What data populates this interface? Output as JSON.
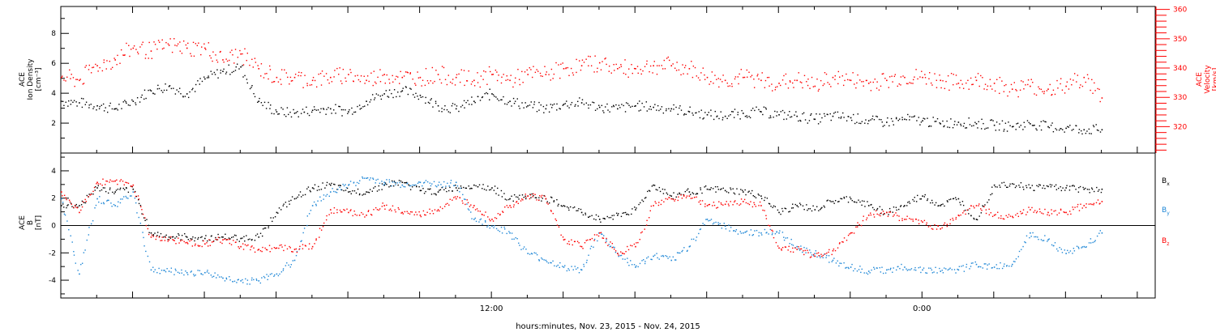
{
  "xlabel": "hours:minutes, Nov. 23, 2015 - Nov. 24, 2015",
  "x_tick_labels": [
    {
      "hour": 12,
      "label": "12:00"
    },
    {
      "hour": 24,
      "label": "0:00"
    }
  ],
  "colors": {
    "black": "#000000",
    "red": "#ff0000",
    "blue": "#1f87d6"
  },
  "chart_data": [
    {
      "type": "scatter",
      "name": "top-panel",
      "ylabel_left": [
        "ACE",
        "Ion Density",
        "[cm⁻³]"
      ],
      "ylabel_right": [
        "ACE",
        "Velocity",
        "[km/s]"
      ],
      "x_unit": "hours since 00:00 Nov. 23, 2015",
      "xlim": [
        0,
        30.5
      ],
      "ylim_left": [
        0,
        9.8
      ],
      "ylim_right": [
        311,
        361
      ],
      "left_ticks": [
        2,
        4,
        6,
        8
      ],
      "right_ticks": [
        320,
        330,
        340,
        350,
        360
      ],
      "series": [
        {
          "name": "Ion Density",
          "color": "black",
          "axis": "left",
          "x": [
            0,
            0.5,
            1,
            1.5,
            2,
            2.5,
            3,
            3.5,
            4,
            4.5,
            5,
            5.5,
            6,
            6.5,
            7,
            7.5,
            8,
            8.5,
            9,
            9.5,
            10,
            10.5,
            11,
            11.5,
            12,
            12.5,
            13,
            13.5,
            14,
            14.5,
            15,
            15.5,
            16,
            16.5,
            17,
            17.5,
            18,
            18.5,
            19,
            19.5,
            20,
            20.5,
            21,
            21.5,
            22,
            22.5,
            23,
            23.5,
            24,
            24.5,
            25,
            25.5,
            26,
            26.5,
            27,
            27.5,
            28,
            28.5,
            29
          ],
          "y": [
            3.5,
            3.4,
            3.2,
            3.0,
            3.5,
            4.2,
            4.5,
            4.0,
            5.0,
            5.5,
            5.8,
            3.5,
            2.8,
            2.7,
            2.9,
            3.0,
            2.8,
            3.5,
            4.0,
            4.2,
            3.9,
            3.2,
            3.0,
            3.5,
            4.0,
            3.5,
            3.2,
            3.0,
            3.3,
            3.4,
            3.1,
            3.0,
            3.2,
            3.1,
            3.0,
            2.8,
            2.6,
            2.5,
            2.7,
            2.8,
            2.6,
            2.5,
            2.3,
            2.5,
            2.4,
            2.2,
            2.1,
            2.3,
            2.2,
            2.0,
            2.1,
            2.0,
            1.9,
            1.8,
            2.0,
            1.8,
            1.7,
            1.6,
            1.6
          ]
        },
        {
          "name": "Velocity",
          "color": "red",
          "axis": "right",
          "x": [
            0,
            0.5,
            1,
            1.5,
            2,
            2.5,
            3,
            3.5,
            4,
            4.5,
            5,
            5.5,
            6,
            6.5,
            7,
            7.5,
            8,
            8.5,
            9,
            9.5,
            10,
            10.5,
            11,
            11.5,
            12,
            12.5,
            13,
            13.5,
            14,
            14.5,
            15,
            15.5,
            16,
            16.5,
            17,
            17.5,
            18,
            18.5,
            19,
            19.5,
            20,
            20.5,
            21,
            21.5,
            22,
            22.5,
            23,
            23.5,
            24,
            24.5,
            25,
            25.5,
            26,
            26.5,
            27,
            27.5,
            28,
            28.5,
            29
          ],
          "y": [
            337,
            336,
            341,
            343,
            347,
            346,
            348,
            347,
            347,
            343,
            345,
            340,
            337,
            337,
            336,
            337,
            338,
            336,
            338,
            337,
            337,
            338,
            337,
            336,
            338,
            336,
            338,
            338,
            340,
            341,
            342,
            340,
            340,
            341,
            341,
            340,
            337,
            336,
            337,
            336,
            335,
            336,
            334,
            337,
            336,
            335,
            336,
            337,
            337,
            336,
            335,
            336,
            335,
            333,
            334,
            333,
            334,
            337,
            330
          ]
        }
      ]
    },
    {
      "type": "scatter",
      "name": "bottom-panel",
      "ylabel_left": [
        "ACE",
        "B",
        "[nT]"
      ],
      "x_unit": "hours since 00:00 Nov. 23, 2015",
      "xlim": [
        0,
        30.5
      ],
      "ylim": [
        -5.3,
        5.3
      ],
      "left_ticks": [
        -4,
        -2,
        0,
        2,
        4
      ],
      "series": [
        {
          "name": "Bx",
          "legend_base": "B",
          "legend_sub": "x",
          "color": "black",
          "x": [
            0,
            0.5,
            1,
            1.5,
            2,
            2.5,
            3,
            3.5,
            4,
            4.5,
            5,
            5.5,
            6,
            6.5,
            7,
            7.5,
            8,
            8.5,
            9,
            9.5,
            10,
            10.5,
            11,
            11.5,
            12,
            12.5,
            13,
            13.5,
            14,
            14.5,
            15,
            15.5,
            16,
            16.5,
            17,
            17.5,
            18,
            18.5,
            19,
            19.5,
            20,
            20.5,
            21,
            21.5,
            22,
            22.5,
            23,
            23.5,
            24,
            24.5,
            25,
            25.5,
            26,
            26.5,
            27,
            27.5,
            28,
            28.5,
            29
          ],
          "y": [
            1.5,
            1.5,
            2.8,
            2.5,
            2.7,
            -0.5,
            -0.8,
            -0.8,
            -0.9,
            -0.8,
            -0.9,
            -0.8,
            1.0,
            2.0,
            2.8,
            3.0,
            2.5,
            2.5,
            3.0,
            3.2,
            2.6,
            2.5,
            2.8,
            3.0,
            2.8,
            2.0,
            2.2,
            2.0,
            1.5,
            1.0,
            0.5,
            0.8,
            1.2,
            3.0,
            2.2,
            2.5,
            2.7,
            2.6,
            2.5,
            2.2,
            1.0,
            1.5,
            1.2,
            1.8,
            2.0,
            1.5,
            1.0,
            1.5,
            2.2,
            1.5,
            2.0,
            0.5,
            3.0,
            3.1,
            2.8,
            2.9,
            2.8,
            2.7,
            2.7
          ]
        },
        {
          "name": "By",
          "legend_base": "B",
          "legend_sub": "y",
          "color": "blue",
          "x": [
            0,
            0.5,
            1,
            1.5,
            2,
            2.5,
            3,
            3.5,
            4,
            4.5,
            5,
            5.5,
            6,
            6.5,
            7,
            7.5,
            8,
            8.5,
            9,
            9.5,
            10,
            10.5,
            11,
            11.5,
            12,
            12.5,
            13,
            13.5,
            14,
            14.5,
            15,
            15.5,
            16,
            16.5,
            17,
            17.5,
            18,
            18.5,
            19,
            19.5,
            20,
            20.5,
            21,
            21.5,
            22,
            22.5,
            23,
            23.5,
            24,
            24.5,
            25,
            25.5,
            26,
            26.5,
            27,
            27.5,
            28,
            28.5,
            29
          ],
          "y": [
            2.0,
            -3.5,
            2.0,
            1.5,
            2.5,
            -3.2,
            -3.3,
            -3.4,
            -3.4,
            -3.8,
            -4.0,
            -4.0,
            -3.5,
            -2.5,
            1.5,
            2.5,
            3.0,
            3.5,
            3.2,
            3.0,
            3.2,
            3.0,
            3.2,
            0.5,
            0.0,
            -0.5,
            -2.0,
            -2.5,
            -3.0,
            -3.2,
            -0.5,
            -2.0,
            -3.0,
            -2.2,
            -2.5,
            -1.5,
            0.5,
            0.0,
            -0.5,
            -0.5,
            -0.5,
            -1.5,
            -2.0,
            -2.5,
            -3.0,
            -3.3,
            -3.2,
            -3.0,
            -3.2,
            -3.3,
            -3.2,
            -2.8,
            -3.0,
            -2.8,
            -0.5,
            -1.0,
            -2.0,
            -1.5,
            -0.5
          ]
        },
        {
          "name": "Bz",
          "legend_base": "B",
          "legend_sub": "z",
          "color": "red",
          "x": [
            0,
            0.5,
            1,
            1.5,
            2,
            2.5,
            3,
            3.5,
            4,
            4.5,
            5,
            5.5,
            6,
            6.5,
            7,
            7.5,
            8,
            8.5,
            9,
            9.5,
            10,
            10.5,
            11,
            11.5,
            12,
            12.5,
            13,
            13.5,
            14,
            14.5,
            15,
            15.5,
            16,
            16.5,
            17,
            17.5,
            18,
            18.5,
            19,
            19.5,
            20,
            20.5,
            21,
            21.5,
            22,
            22.5,
            23,
            23.5,
            24,
            24.5,
            25,
            25.5,
            26,
            26.5,
            27,
            27.5,
            28,
            28.5,
            29
          ],
          "y": [
            2.5,
            1.0,
            3.2,
            3.3,
            3.0,
            -0.8,
            -1.0,
            -1.2,
            -1.3,
            -1.0,
            -1.5,
            -1.7,
            -1.6,
            -1.7,
            -1.5,
            1.2,
            1.0,
            0.8,
            1.5,
            1.0,
            0.8,
            1.2,
            2.0,
            1.5,
            0.5,
            1.5,
            2.2,
            2.0,
            -1.0,
            -1.5,
            -0.5,
            -2.0,
            -1.5,
            1.5,
            2.0,
            2.2,
            1.5,
            1.6,
            1.8,
            1.5,
            -1.6,
            -1.7,
            -2.2,
            -1.8,
            -0.5,
            0.8,
            1.0,
            0.5,
            0.3,
            -0.2,
            0.8,
            1.5,
            0.8,
            0.7,
            1.2,
            1.0,
            1.0,
            1.5,
            1.8
          ]
        }
      ]
    }
  ]
}
